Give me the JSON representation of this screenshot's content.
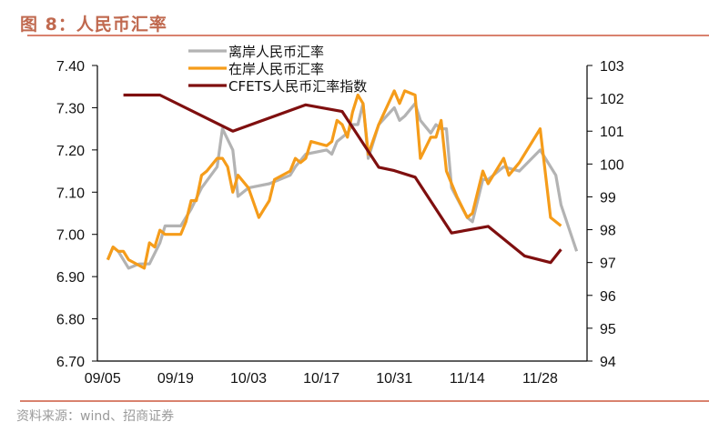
{
  "title": "图 8：人民币汇率",
  "source": "资料来源：wind、招商证券",
  "chart_data": {
    "type": "line",
    "title": "图 8：人民币汇率",
    "xlabel": "",
    "ylabel_left": "",
    "ylabel_right": "",
    "x_ticks": [
      "09/05",
      "09/19",
      "10/03",
      "10/17",
      "10/31",
      "11/14",
      "11/28"
    ],
    "xlim": [
      "09/04",
      "12/07"
    ],
    "y_left": {
      "lim": [
        6.7,
        7.4
      ],
      "ticks": [
        "7.40",
        "7.30",
        "7.20",
        "7.10",
        "7.00",
        "6.90",
        "6.80",
        "6.70"
      ]
    },
    "y_right": {
      "lim": [
        94,
        103
      ],
      "ticks": [
        "103",
        "102",
        "101",
        "100",
        "99",
        "98",
        "97",
        "96",
        "95",
        "94"
      ]
    },
    "grid": false,
    "legend": {
      "placement": "top-center"
    },
    "series": [
      {
        "name": "离岸人民币汇率",
        "axis": "left",
        "color": "#b3b3b3",
        "points": [
          [
            "09/06",
            6.94
          ],
          [
            "09/07",
            6.97
          ],
          [
            "09/08",
            6.96
          ],
          [
            "09/10",
            6.92
          ],
          [
            "09/12",
            6.93
          ],
          [
            "09/14",
            6.93
          ],
          [
            "09/16",
            6.98
          ],
          [
            "09/17",
            7.02
          ],
          [
            "09/20",
            7.02
          ],
          [
            "09/22",
            7.06
          ],
          [
            "09/24",
            7.11
          ],
          [
            "09/27",
            7.16
          ],
          [
            "09/28",
            7.25
          ],
          [
            "09/30",
            7.2
          ],
          [
            "10/01",
            7.09
          ],
          [
            "10/03",
            7.11
          ],
          [
            "10/07",
            7.12
          ],
          [
            "10/11",
            7.14
          ],
          [
            "10/12",
            7.16
          ],
          [
            "10/14",
            7.19
          ],
          [
            "10/18",
            7.2
          ],
          [
            "10/19",
            7.19
          ],
          [
            "10/20",
            7.22
          ],
          [
            "10/22",
            7.24
          ],
          [
            "10/23",
            7.26
          ],
          [
            "10/24",
            7.26
          ],
          [
            "10/25",
            7.31
          ],
          [
            "10/26",
            7.18
          ],
          [
            "10/28",
            7.26
          ],
          [
            "10/31",
            7.3
          ],
          [
            "11/01",
            7.27
          ],
          [
            "11/02",
            7.28
          ],
          [
            "11/04",
            7.31
          ],
          [
            "11/05",
            7.27
          ],
          [
            "11/07",
            7.24
          ],
          [
            "11/08",
            7.26
          ],
          [
            "11/09",
            7.25
          ],
          [
            "11/10",
            7.25
          ],
          [
            "11/11",
            7.11
          ],
          [
            "11/14",
            7.04
          ],
          [
            "11/15",
            7.03
          ],
          [
            "11/17",
            7.13
          ],
          [
            "11/18",
            7.13
          ],
          [
            "11/21",
            7.16
          ],
          [
            "11/24",
            7.15
          ],
          [
            "11/28",
            7.2
          ],
          [
            "12/01",
            7.14
          ],
          [
            "12/02",
            7.07
          ],
          [
            "12/05",
            6.96
          ]
        ]
      },
      {
        "name": "在岸人民币汇率",
        "axis": "left",
        "color": "#f59c1a",
        "points": [
          [
            "09/06",
            6.94
          ],
          [
            "09/07",
            6.97
          ],
          [
            "09/08",
            6.96
          ],
          [
            "09/09",
            6.96
          ],
          [
            "09/10",
            6.94
          ],
          [
            "09/13",
            6.92
          ],
          [
            "09/14",
            6.98
          ],
          [
            "09/15",
            6.97
          ],
          [
            "09/16",
            7.01
          ],
          [
            "09/17",
            7.0
          ],
          [
            "09/20",
            7.0
          ],
          [
            "09/21",
            7.03
          ],
          [
            "09/22",
            7.08
          ],
          [
            "09/23",
            7.08
          ],
          [
            "09/24",
            7.14
          ],
          [
            "09/25",
            7.15
          ],
          [
            "09/27",
            7.18
          ],
          [
            "09/28",
            7.18
          ],
          [
            "09/29",
            7.16
          ],
          [
            "09/30",
            7.1
          ],
          [
            "10/01",
            7.14
          ],
          [
            "10/03",
            7.11
          ],
          [
            "10/05",
            7.04
          ],
          [
            "10/06",
            7.06
          ],
          [
            "10/07",
            7.08
          ],
          [
            "10/08",
            7.13
          ],
          [
            "10/11",
            7.15
          ],
          [
            "10/12",
            7.18
          ],
          [
            "10/13",
            7.17
          ],
          [
            "10/14",
            7.18
          ],
          [
            "10/15",
            7.22
          ],
          [
            "10/18",
            7.21
          ],
          [
            "10/19",
            7.22
          ],
          [
            "10/20",
            7.27
          ],
          [
            "10/21",
            7.26
          ],
          [
            "10/22",
            7.23
          ],
          [
            "10/23",
            7.29
          ],
          [
            "10/24",
            7.33
          ],
          [
            "10/25",
            7.31
          ],
          [
            "10/26",
            7.19
          ],
          [
            "10/28",
            7.26
          ],
          [
            "10/31",
            7.34
          ],
          [
            "11/01",
            7.31
          ],
          [
            "11/02",
            7.34
          ],
          [
            "11/04",
            7.33
          ],
          [
            "11/05",
            7.18
          ],
          [
            "11/07",
            7.23
          ],
          [
            "11/08",
            7.23
          ],
          [
            "11/09",
            7.27
          ],
          [
            "11/10",
            7.15
          ],
          [
            "11/12",
            7.09
          ],
          [
            "11/14",
            7.04
          ],
          [
            "11/15",
            7.05
          ],
          [
            "11/16",
            7.1
          ],
          [
            "11/17",
            7.15
          ],
          [
            "11/18",
            7.12
          ],
          [
            "11/21",
            7.18
          ],
          [
            "11/22",
            7.14
          ],
          [
            "11/24",
            7.17
          ],
          [
            "11/28",
            7.25
          ],
          [
            "11/30",
            7.04
          ],
          [
            "12/02",
            7.02
          ]
        ]
      },
      {
        "name": "CFETS人民币汇率指数",
        "axis": "right",
        "color": "#7f0f0f",
        "points": [
          [
            "09/09",
            102.1
          ],
          [
            "09/16",
            102.1
          ],
          [
            "09/30",
            101.0
          ],
          [
            "10/14",
            101.8
          ],
          [
            "10/21",
            101.6
          ],
          [
            "10/28",
            99.9
          ],
          [
            "10/31",
            99.8
          ],
          [
            "11/04",
            99.6
          ],
          [
            "11/11",
            97.9
          ],
          [
            "11/18",
            98.1
          ],
          [
            "11/25",
            97.2
          ],
          [
            "11/30",
            97.0
          ],
          [
            "12/02",
            97.4
          ]
        ]
      }
    ]
  }
}
